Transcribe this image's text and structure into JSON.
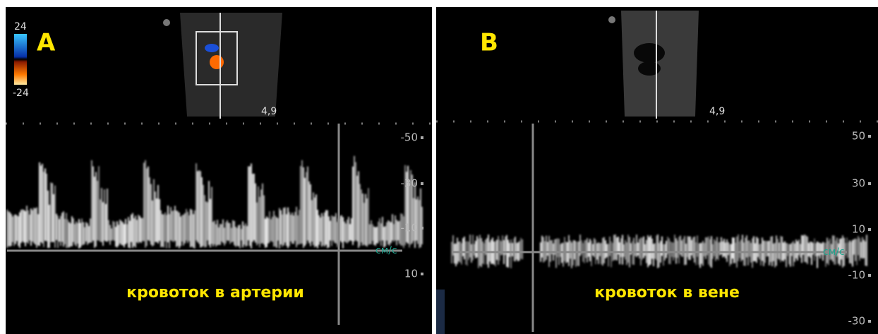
{
  "panels": [
    {
      "label": "A",
      "color_scale": {
        "max": "24",
        "min": "-24"
      },
      "depth": "4,9",
      "scale": [
        "-50",
        "-30",
        "-10",
        "см/с",
        "10"
      ],
      "caption": "кровоток в артерии"
    },
    {
      "label": "B",
      "depth": "4,9",
      "scale": [
        "50",
        "30",
        "10",
        "см/с",
        "-10",
        "-30"
      ],
      "caption": "кровоток в вене"
    }
  ]
}
